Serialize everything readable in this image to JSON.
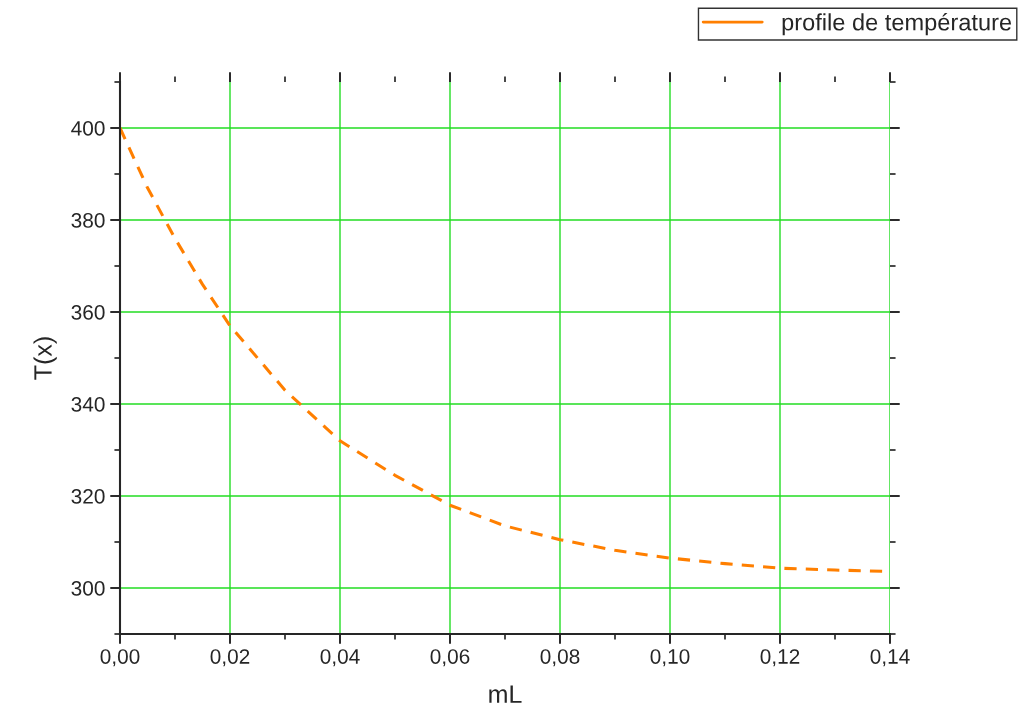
{
  "chart_data": {
    "type": "line",
    "xlabel": "mL",
    "ylabel": "T(x)",
    "x": [
      0,
      0.005,
      0.01,
      0.015,
      0.02,
      0.03,
      0.04,
      0.05,
      0.06,
      0.07,
      0.08,
      0.09,
      0.1,
      0.11,
      0.12,
      0.13,
      0.14
    ],
    "series": [
      {
        "name": "profile de température",
        "color": "#ff7f00",
        "values": [
          400,
          387,
          376,
          366,
          357,
          343,
          332,
          324.5,
          318,
          313.5,
          310.5,
          308.2,
          306.5,
          305.3,
          304.3,
          303.9,
          303.6
        ]
      }
    ],
    "xlim": [
      0,
      0.14
    ],
    "ylim": [
      290,
      410
    ],
    "xticks": [
      {
        "value": 0,
        "label": "0,00"
      },
      {
        "value": 0.02,
        "label": "0,02"
      },
      {
        "value": 0.04,
        "label": "0,04"
      },
      {
        "value": 0.06,
        "label": "0,06"
      },
      {
        "value": 0.08,
        "label": "0,08"
      },
      {
        "value": 0.1,
        "label": "0,10"
      },
      {
        "value": 0.12,
        "label": "0,12"
      },
      {
        "value": 0.14,
        "label": "0,14"
      }
    ],
    "yticks": [
      300,
      320,
      340,
      360,
      380,
      400
    ],
    "grid": true,
    "legend": "top right",
    "line_style": "dashed",
    "marker": "none"
  }
}
